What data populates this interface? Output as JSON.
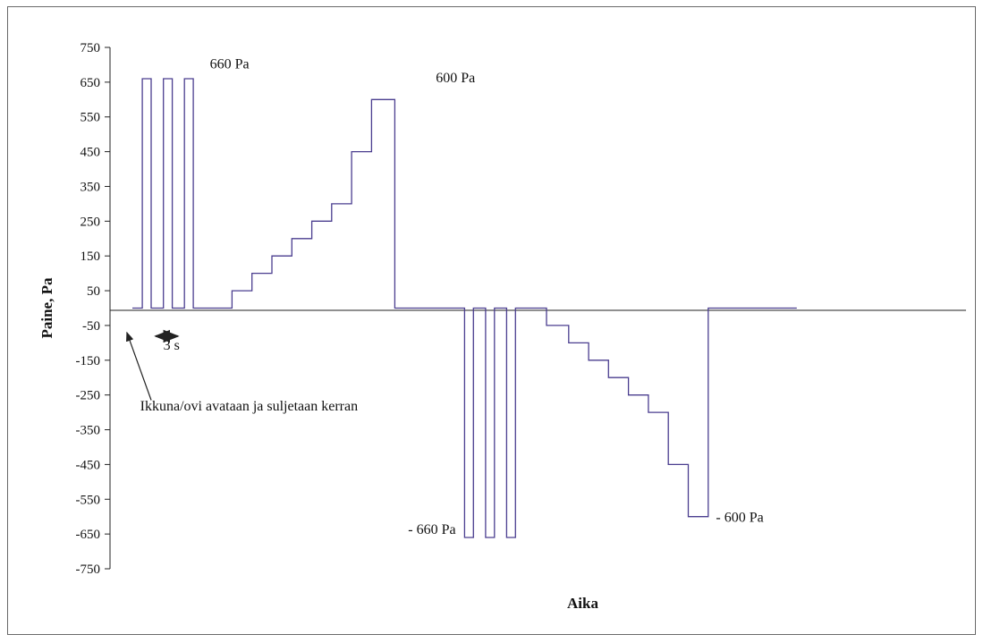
{
  "chart_data": {
    "type": "line",
    "title": "",
    "xlabel": "Aika",
    "ylabel": "Paine, Pa",
    "ylim": [
      -750,
      750
    ],
    "yticks": [
      750,
      650,
      550,
      450,
      350,
      250,
      150,
      50,
      -50,
      -150,
      -250,
      -350,
      -450,
      -550,
      -650,
      -750
    ],
    "grid": false,
    "legend": "none",
    "series": [
      {
        "color": "#4a3d8f",
        "points": [
          [
            0,
            0
          ],
          [
            0.9,
            0
          ],
          [
            0.9,
            660
          ],
          [
            1.7,
            660
          ],
          [
            1.7,
            0
          ],
          [
            2.8,
            0
          ],
          [
            2.8,
            660
          ],
          [
            3.6,
            660
          ],
          [
            3.6,
            0
          ],
          [
            4.7,
            0
          ],
          [
            4.7,
            660
          ],
          [
            5.5,
            660
          ],
          [
            5.5,
            0
          ],
          [
            9,
            0
          ],
          [
            9,
            50
          ],
          [
            10.8,
            50
          ],
          [
            10.8,
            100
          ],
          [
            12.6,
            100
          ],
          [
            12.6,
            150
          ],
          [
            14.4,
            150
          ],
          [
            14.4,
            200
          ],
          [
            16.2,
            200
          ],
          [
            16.2,
            250
          ],
          [
            18,
            250
          ],
          [
            18,
            300
          ],
          [
            19.8,
            300
          ],
          [
            19.8,
            450
          ],
          [
            21.6,
            450
          ],
          [
            21.6,
            600
          ],
          [
            23.7,
            600
          ],
          [
            23.7,
            0
          ],
          [
            30,
            0
          ],
          [
            30,
            -660
          ],
          [
            30.8,
            -660
          ],
          [
            30.8,
            0
          ],
          [
            31.9,
            0
          ],
          [
            31.9,
            -660
          ],
          [
            32.7,
            -660
          ],
          [
            32.7,
            0
          ],
          [
            33.8,
            0
          ],
          [
            33.8,
            -660
          ],
          [
            34.6,
            -660
          ],
          [
            34.6,
            0
          ],
          [
            37.4,
            0
          ],
          [
            37.4,
            -50
          ],
          [
            39.4,
            -50
          ],
          [
            39.4,
            -100
          ],
          [
            41.2,
            -100
          ],
          [
            41.2,
            -150
          ],
          [
            43,
            -150
          ],
          [
            43,
            -200
          ],
          [
            44.8,
            -200
          ],
          [
            44.8,
            -250
          ],
          [
            46.6,
            -250
          ],
          [
            46.6,
            -300
          ],
          [
            48.4,
            -300
          ],
          [
            48.4,
            -450
          ],
          [
            50.2,
            -450
          ],
          [
            50.2,
            -600
          ],
          [
            52,
            -600
          ],
          [
            52,
            0
          ],
          [
            60,
            0
          ]
        ]
      }
    ],
    "annotations": [
      {
        "text": "660 Pa",
        "x": 7,
        "y": 690
      },
      {
        "text": "600 Pa",
        "x": 27.4,
        "y": 650
      },
      {
        "text": "- 660 Pa",
        "x": 24.9,
        "y": -650
      },
      {
        "text": "- 600 Pa",
        "x": 52.7,
        "y": -615
      },
      {
        "text": "3 s",
        "x": 2.8,
        "y": -120
      },
      {
        "text": "Ikkuna/ovi avataan ja suljetaan kerran",
        "x": 0.7,
        "y": -295
      }
    ],
    "interval_marker": {
      "x_start": 2.1,
      "x_end": 4.1,
      "y": -50
    },
    "arrow": {
      "from": [
        1.7,
        -265
      ],
      "to": [
        -0.5,
        -70
      ]
    }
  }
}
